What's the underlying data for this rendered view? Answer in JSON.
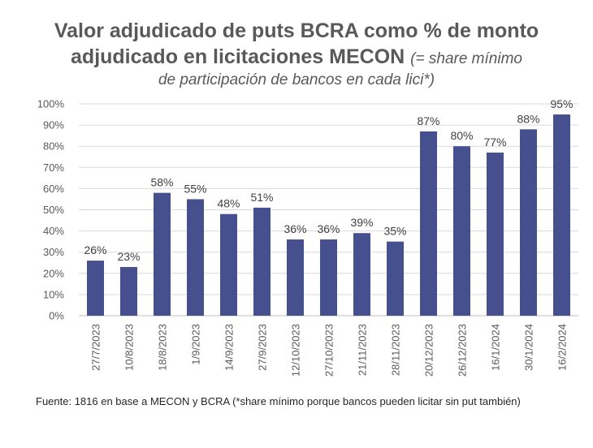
{
  "title": {
    "line1": "Valor adjudicado de puts BCRA como % de monto",
    "line2": "adjudicado en licitaciones MECON",
    "subtitle_part1": "(= share mínimo",
    "subtitle_part2": "de participación de bancos en cada lici*)"
  },
  "source_note": "Fuente: 1816 en base a MECON y BCRA (*share mínimo porque bancos pueden licitar sin put también)",
  "colors": {
    "bar": "#46508F",
    "grid": "#D9D9D9",
    "text": "#595959"
  },
  "chart_data": {
    "type": "bar",
    "title": "Valor adjudicado de puts BCRA como % de monto adjudicado en licitaciones MECON",
    "xlabel": "",
    "ylabel": "",
    "ylim": [
      0,
      100
    ],
    "yticks": [
      "0%",
      "10%",
      "20%",
      "30%",
      "40%",
      "50%",
      "60%",
      "70%",
      "80%",
      "90%",
      "100%"
    ],
    "categories": [
      "27/7/2023",
      "10/8/2023",
      "18/8/2023",
      "1/9/2023",
      "14/9/2023",
      "27/9/2023",
      "12/10/2023",
      "27/10/2023",
      "21/11/2023",
      "28/11/2023",
      "20/12/2023",
      "26/12/2023",
      "16/1/2024",
      "30/1/2024",
      "16/2/2024"
    ],
    "values": [
      26,
      23,
      58,
      55,
      48,
      51,
      36,
      36,
      39,
      35,
      87,
      80,
      77,
      88,
      95
    ],
    "labels": [
      "26%",
      "23%",
      "58%",
      "55%",
      "48%",
      "51%",
      "36%",
      "36%",
      "39%",
      "35%",
      "87%",
      "80%",
      "77%",
      "88%",
      "95%"
    ],
    "grid": true,
    "legend": "none"
  }
}
